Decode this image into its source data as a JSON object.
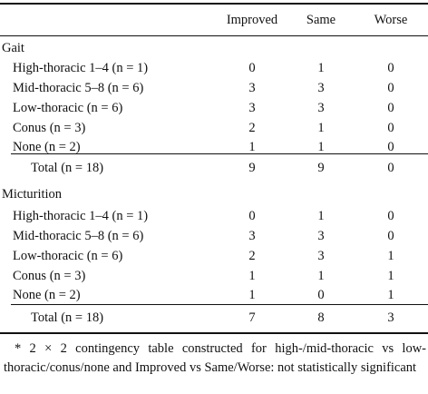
{
  "header": {
    "col1": "Improved",
    "col2": "Same",
    "col3": "Worse"
  },
  "sections": [
    {
      "title": "Gait",
      "rows": [
        {
          "label": "High-thoracic 1–4 (n = 1)",
          "v": [
            "0",
            "1",
            "0"
          ]
        },
        {
          "label": "Mid-thoracic 5–8 (n = 6)",
          "v": [
            "3",
            "3",
            "0"
          ]
        },
        {
          "label": "Low-thoracic (n = 6)",
          "v": [
            "3",
            "3",
            "0"
          ]
        },
        {
          "label": "Conus (n = 3)",
          "v": [
            "2",
            "1",
            "0"
          ]
        },
        {
          "label": "None (n = 2)",
          "v": [
            "1",
            "1",
            "0"
          ]
        }
      ],
      "total": {
        "label": "Total (n = 18)",
        "v": [
          "9",
          "9",
          "0"
        ]
      }
    },
    {
      "title": "Micturition",
      "rows": [
        {
          "label": "High-thoracic 1–4 (n = 1)",
          "v": [
            "0",
            "1",
            "0"
          ]
        },
        {
          "label": "Mid-thoracic 5–8 (n = 6)",
          "v": [
            "3",
            "3",
            "0"
          ]
        },
        {
          "label": "Low-thoracic (n = 6)",
          "v": [
            "2",
            "3",
            "1"
          ]
        },
        {
          "label": "Conus (n = 3)",
          "v": [
            "1",
            "1",
            "1"
          ]
        },
        {
          "label": "None (n = 2)",
          "v": [
            "1",
            "0",
            "1"
          ]
        }
      ],
      "total": {
        "label": "Total (n = 18)",
        "v": [
          "7",
          "8",
          "3"
        ]
      }
    }
  ],
  "footnote": "* 2 × 2 contingency table constructed for high-/mid-thoracic vs low-thoracic/conus/none and Improved vs Same/Worse: not statistically significant"
}
